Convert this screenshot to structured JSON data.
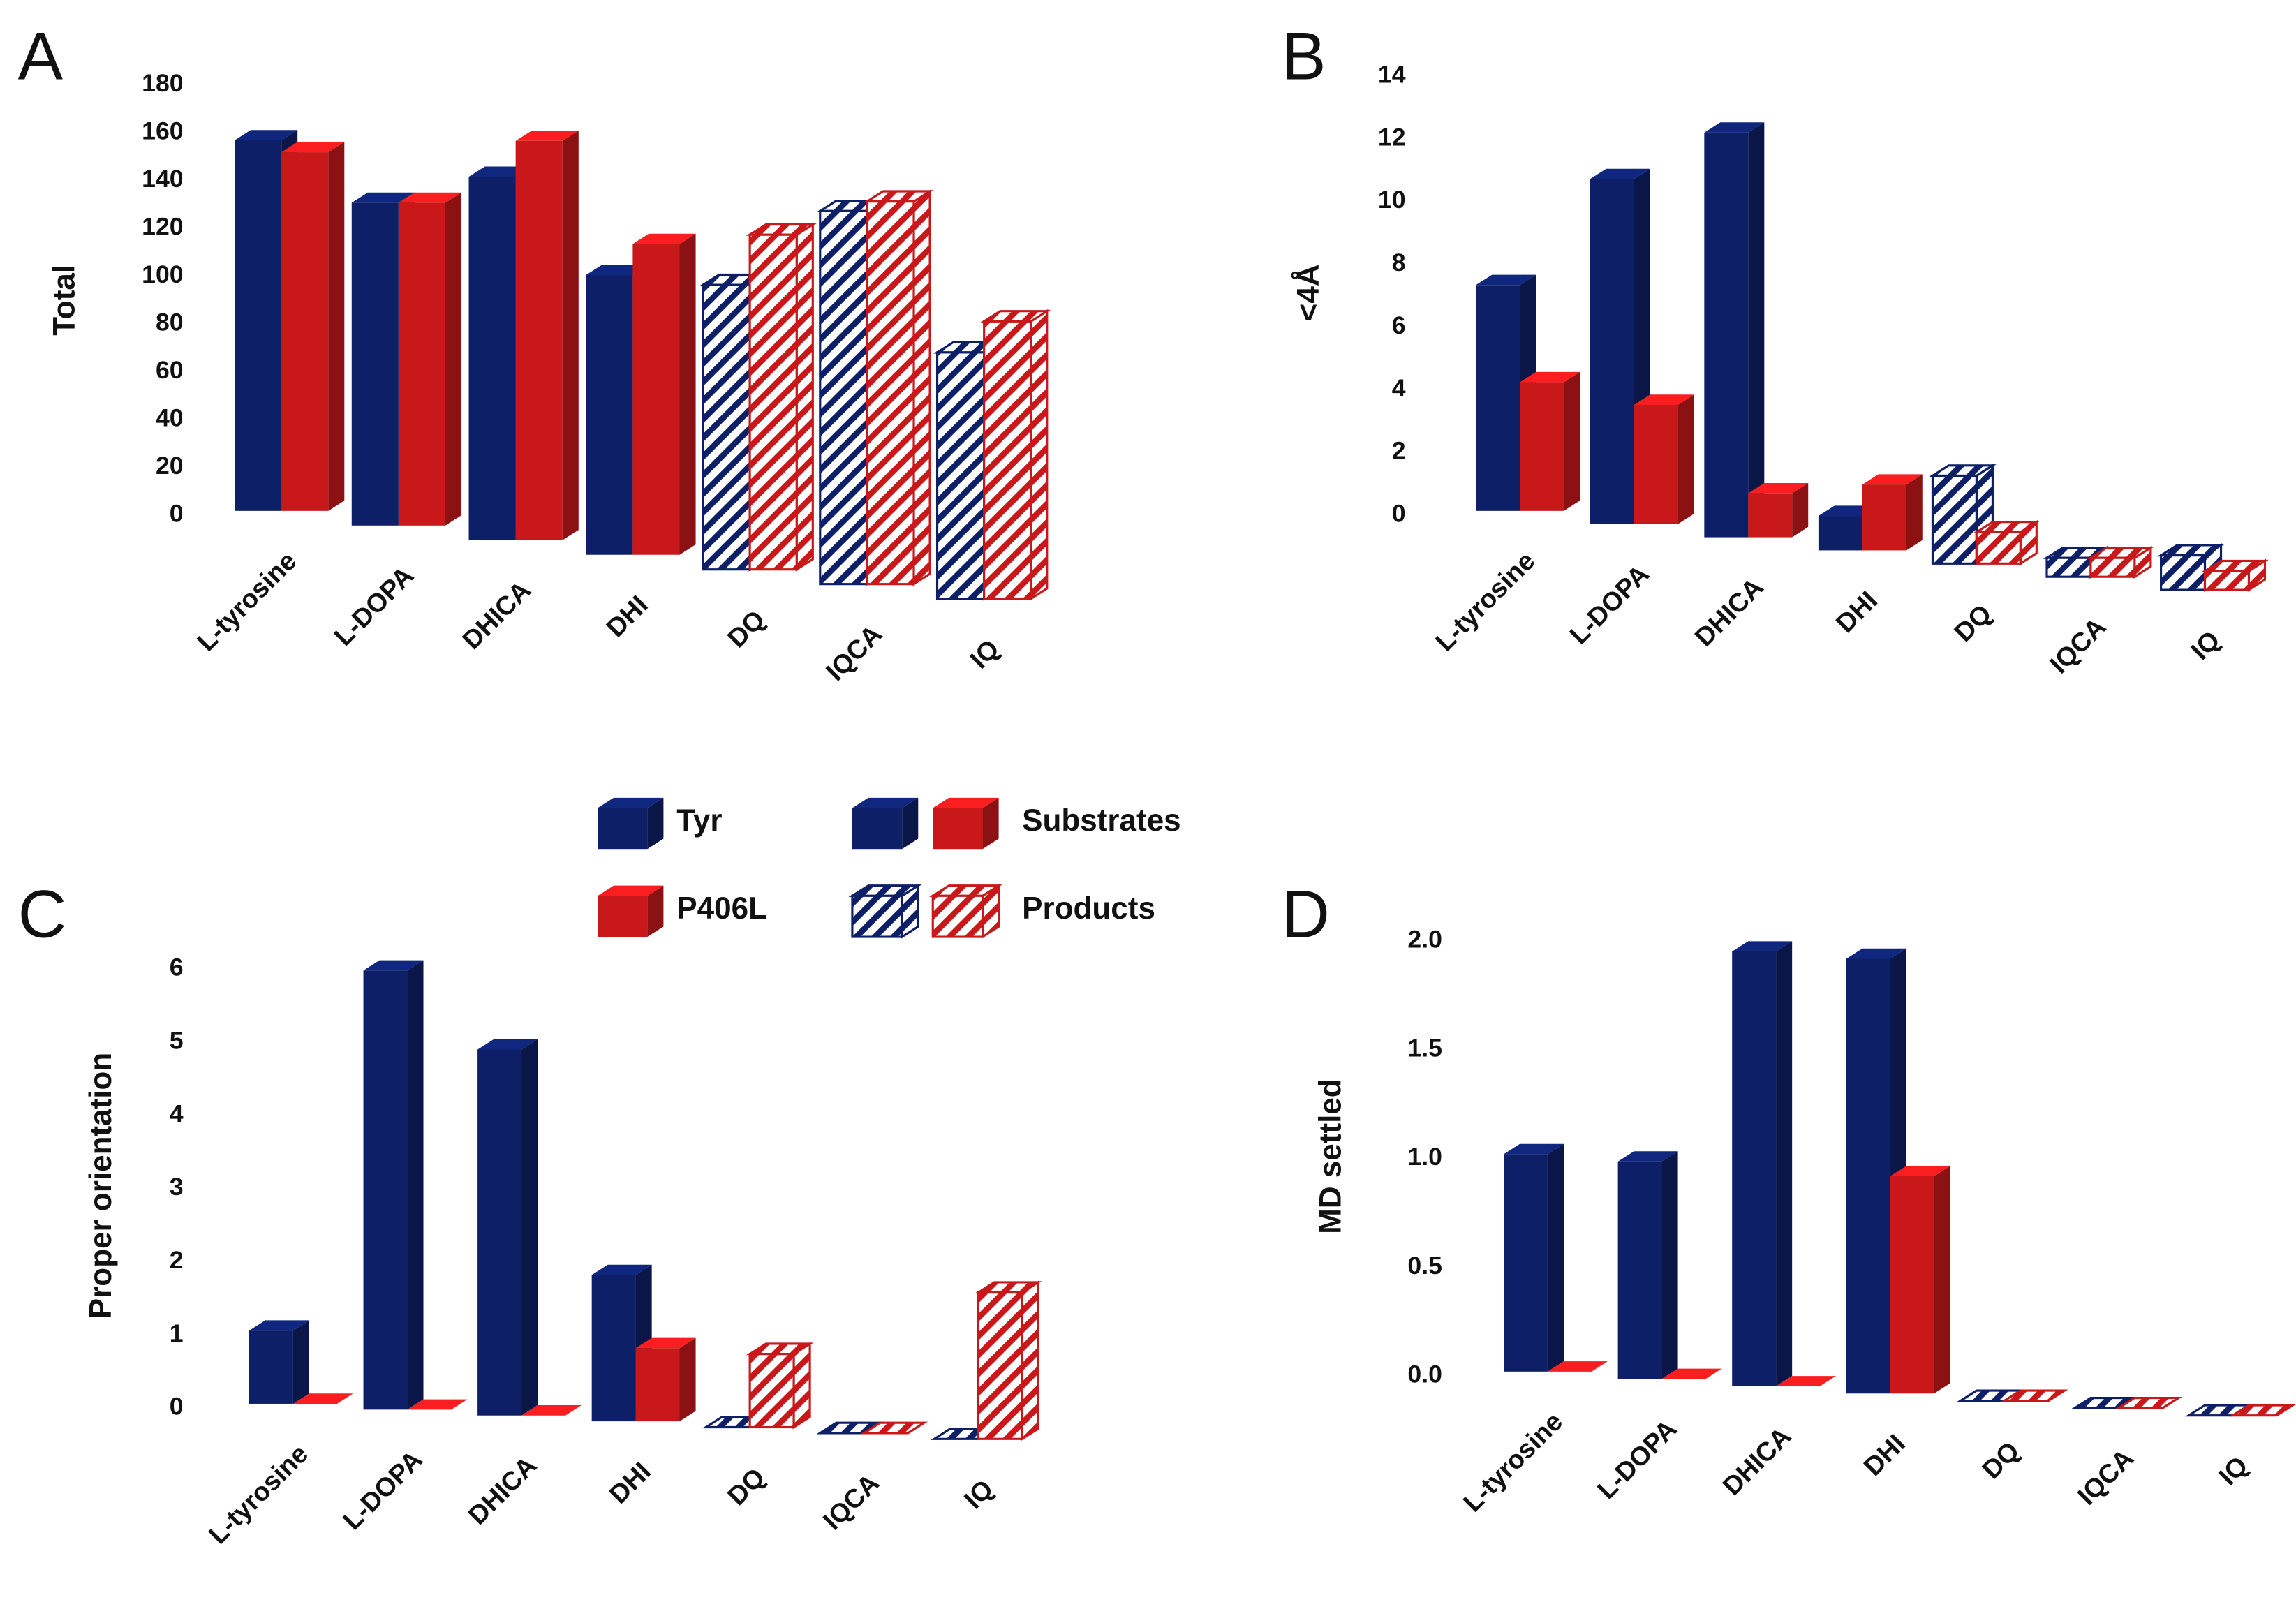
{
  "legend": {
    "series": [
      {
        "name": "Tyr",
        "color": "#0d1f66"
      },
      {
        "name": "P406L",
        "color": "#c8181a"
      }
    ],
    "groups": [
      {
        "name": "Substrates",
        "pattern": "solid"
      },
      {
        "name": "Products",
        "pattern": "hatch"
      }
    ]
  },
  "category_pattern": [
    "solid",
    "solid",
    "solid",
    "solid",
    "hatch",
    "hatch",
    "hatch"
  ],
  "chart_data": [
    {
      "type": "bar3d",
      "panel": "A",
      "y_label": "Total",
      "categories": [
        "L-tyrosine",
        "L-DOPA",
        "DHICA",
        "DHI",
        "DQ",
        "IQCA",
        "IQ"
      ],
      "series": [
        {
          "values": [
            155,
            135,
            152,
            117,
            119,
            156,
            103
          ]
        },
        {
          "values": [
            150,
            135,
            167,
            130,
            140,
            160,
            116
          ]
        }
      ],
      "ylim": [
        0,
        180
      ],
      "yticks": [
        0,
        20,
        40,
        60,
        80,
        100,
        120,
        140,
        160,
        180
      ]
    },
    {
      "type": "bar3d",
      "panel": "B",
      "y_label": "<4Å",
      "categories": [
        "L-tyrosine",
        "L-DOPA",
        "DHICA",
        "DHI",
        "DQ",
        "IQCA",
        "IQ"
      ],
      "series": [
        {
          "values": [
            7.2,
            11,
            12.9,
            1.1,
            2.8,
            0.6,
            1.1
          ]
        },
        {
          "values": [
            4.1,
            3.8,
            1.4,
            2.1,
            1.0,
            0.6,
            0.6
          ]
        }
      ],
      "ylim": [
        0,
        14
      ],
      "yticks": [
        0,
        2,
        4,
        6,
        8,
        10,
        12,
        14
      ]
    },
    {
      "type": "bar3d",
      "panel": "C",
      "y_label": "Proper orientation",
      "categories": [
        "L-tyrosine",
        "L-DOPA",
        "DHICA",
        "DHI",
        "DQ",
        "IQCA",
        "IQ"
      ],
      "series": [
        {
          "values": [
            1,
            6,
            5,
            2,
            0,
            0,
            0
          ]
        },
        {
          "values": [
            0,
            0,
            0,
            1,
            1,
            0,
            2
          ]
        }
      ],
      "ylim": [
        0,
        6
      ],
      "yticks": [
        0,
        1,
        2,
        3,
        4,
        5,
        6
      ]
    },
    {
      "type": "bar3d",
      "panel": "D",
      "y_label": "MD settled",
      "categories": [
        "L-tyrosine",
        "L-DOPA",
        "DHICA",
        "DHI",
        "DQ",
        "IQCA",
        "IQ"
      ],
      "series": [
        {
          "values": [
            1,
            1,
            2,
            2,
            0,
            0,
            0
          ]
        },
        {
          "values": [
            0,
            0,
            0,
            1,
            0,
            0,
            0
          ]
        }
      ],
      "ylim": [
        0,
        2
      ],
      "yticks": [
        {
          "value": 0,
          "label": "0.0"
        },
        {
          "value": 0.5,
          "label": "0.5"
        },
        {
          "value": 1,
          "label": "1.0"
        },
        {
          "value": 1.5,
          "label": "1.5"
        },
        {
          "value": 2,
          "label": "2.0"
        }
      ]
    }
  ]
}
